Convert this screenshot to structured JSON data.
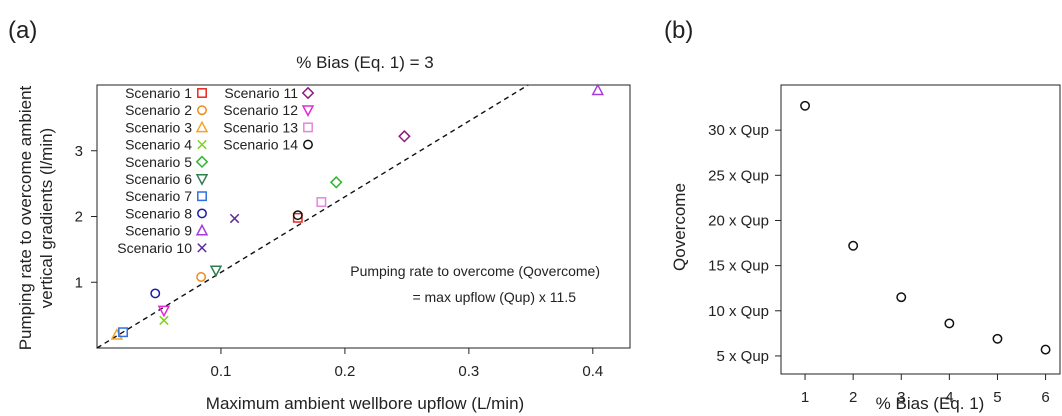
{
  "chart_data": [
    {
      "panel_label": "(a)",
      "type": "scatter",
      "title": "% Bias (Eq. 1) = 3",
      "xlabel": "Maximum ambient wellbore upflow (L/min)",
      "ylabel_line1": "Pumping rate to overcome ambient",
      "ylabel_line2": "vertical gradients (l/min)",
      "xlim": [
        0,
        0.43
      ],
      "ylim": [
        0,
        4.0
      ],
      "xticks": [
        0.1,
        0.2,
        0.3,
        0.4
      ],
      "xtick_labels": [
        "0.1",
        "0.2",
        "0.3",
        "0.4"
      ],
      "yticks": [
        1,
        2,
        3
      ],
      "ytick_labels": [
        "1",
        "2",
        "3"
      ],
      "legend_position": "top-left",
      "annotation_line1": "Pumping rate to overcome (Qovercome)",
      "annotation_line2": "= max upflow (Qup) x 11.5",
      "fit_line": {
        "style": "dashed",
        "slope": 11.5,
        "intercept": 0
      },
      "series": [
        {
          "name": "Scenario 1",
          "marker": "square",
          "color": "#e8281e",
          "x": 0.162,
          "y": 1.98
        },
        {
          "name": "Scenario 2",
          "marker": "circle",
          "color": "#f08a1c",
          "x": 0.084,
          "y": 1.08
        },
        {
          "name": "Scenario 3",
          "marker": "triangle-up",
          "color": "#f5a524",
          "x": 0.016,
          "y": 0.2
        },
        {
          "name": "Scenario 4",
          "marker": "x",
          "color": "#7ed321",
          "x": 0.054,
          "y": 0.42
        },
        {
          "name": "Scenario 5",
          "marker": "diamond",
          "color": "#2fb52f",
          "x": 0.193,
          "y": 2.52
        },
        {
          "name": "Scenario 6",
          "marker": "triangle-down",
          "color": "#2f7d4f",
          "x": 0.096,
          "y": 1.18
        },
        {
          "name": "Scenario 7",
          "marker": "square",
          "color": "#2f6fe0",
          "x": 0.021,
          "y": 0.24
        },
        {
          "name": "Scenario 8",
          "marker": "circle",
          "color": "#1c1ca8",
          "x": 0.047,
          "y": 0.83
        },
        {
          "name": "Scenario 9",
          "marker": "triangle-up",
          "color": "#a43ae0",
          "x": 0.404,
          "y": 3.92
        },
        {
          "name": "Scenario 10",
          "marker": "x",
          "color": "#5c2a96",
          "x": 0.111,
          "y": 1.97
        },
        {
          "name": "Scenario 11",
          "marker": "diamond",
          "color": "#8a1c7d",
          "x": 0.248,
          "y": 3.22
        },
        {
          "name": "Scenario 12",
          "marker": "triangle-down",
          "color": "#e02ad8",
          "x": 0.054,
          "y": 0.57
        },
        {
          "name": "Scenario 13",
          "marker": "square",
          "color": "#e884d8",
          "x": 0.181,
          "y": 2.22
        },
        {
          "name": "Scenario 14",
          "marker": "circle",
          "color": "#111111",
          "x": 0.162,
          "y": 2.02
        }
      ]
    },
    {
      "panel_label": "(b)",
      "type": "scatter",
      "title": "",
      "xlabel": "% Bias (Eq. 1)",
      "ylabel": "Qovercome",
      "xlim": [
        0.5,
        6.3
      ],
      "ylim": [
        3.0,
        35.0
      ],
      "xticks": [
        1,
        2,
        3,
        4,
        5,
        6
      ],
      "xtick_labels": [
        "1",
        "2",
        "3",
        "4",
        "5",
        "6"
      ],
      "yticks": [
        5,
        10,
        15,
        20,
        25,
        30
      ],
      "ytick_labels": [
        "5 x Qup",
        "10 x Qup",
        "15 x Qup",
        "20 x Qup",
        "25 x Qup",
        "30 x Qup"
      ],
      "x": [
        1,
        2,
        3,
        4,
        5,
        6
      ],
      "y": [
        32.7,
        17.2,
        11.5,
        8.6,
        6.9,
        5.7
      ],
      "marker": "circle",
      "color": "#111111"
    }
  ]
}
